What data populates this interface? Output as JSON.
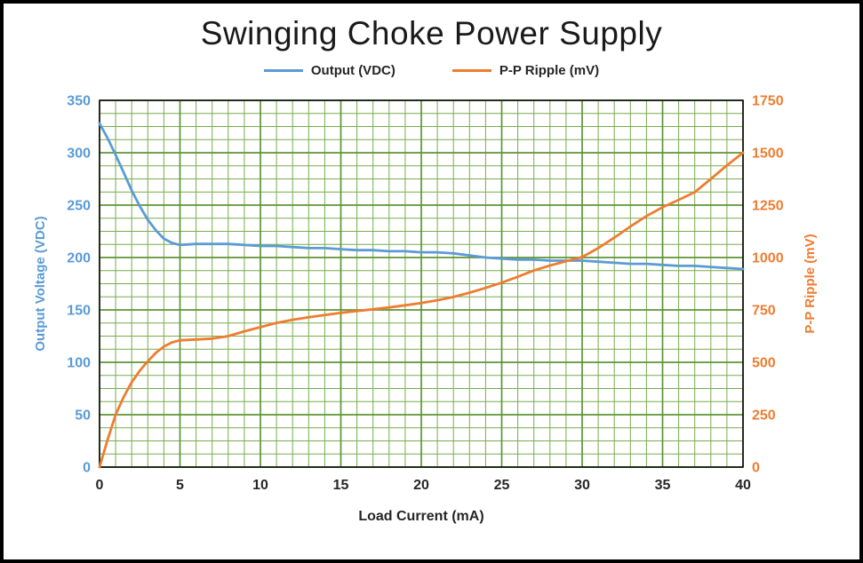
{
  "chart": {
    "colors": {
      "grid_minor": "#79ab4f",
      "grid_major": "#5e9434",
      "plot_border": "#000000",
      "text": "#262626",
      "frame_border": "#000000"
    }
  },
  "chart_data": {
    "type": "line",
    "title": "Swinging Choke Power Supply",
    "xlabel": "Load Current (mA)",
    "x_range": [
      0,
      40
    ],
    "x_major": 5,
    "x_minor": 1,
    "grid": true,
    "legend_position": "top",
    "left_axis": {
      "label": "Output Voltage (VDC)",
      "range": [
        0,
        350
      ],
      "major": 50,
      "minor": 12.5,
      "color": "#5B9BD5"
    },
    "right_axis": {
      "label": "P-P Ripple (mV)",
      "range": [
        0,
        1750
      ],
      "major": 250,
      "minor": 62.5,
      "color": "#ED7D31"
    },
    "series": [
      {
        "name": "Output (VDC)",
        "axis": "left",
        "color": "#5B9BD5",
        "points": [
          [
            0,
            328
          ],
          [
            0.5,
            314
          ],
          [
            1,
            298
          ],
          [
            1.5,
            281
          ],
          [
            2,
            264
          ],
          [
            2.5,
            249
          ],
          [
            3,
            236
          ],
          [
            3.5,
            226
          ],
          [
            4,
            218
          ],
          [
            4.5,
            214
          ],
          [
            5,
            212
          ],
          [
            6,
            213
          ],
          [
            7,
            213
          ],
          [
            8,
            213
          ],
          [
            9,
            212
          ],
          [
            10,
            211
          ],
          [
            11,
            211
          ],
          [
            12,
            210
          ],
          [
            13,
            209
          ],
          [
            14,
            209
          ],
          [
            15,
            208
          ],
          [
            16,
            207
          ],
          [
            17,
            207
          ],
          [
            18,
            206
          ],
          [
            19,
            206
          ],
          [
            20,
            205
          ],
          [
            21,
            205
          ],
          [
            22,
            204
          ],
          [
            23,
            202
          ],
          [
            24,
            200
          ],
          [
            25,
            199
          ],
          [
            26,
            198
          ],
          [
            27,
            198
          ],
          [
            28,
            197
          ],
          [
            29,
            197
          ],
          [
            30,
            197
          ],
          [
            31,
            196
          ],
          [
            32,
            195
          ],
          [
            33,
            194
          ],
          [
            34,
            194
          ],
          [
            35,
            193
          ],
          [
            36,
            192
          ],
          [
            37,
            192
          ],
          [
            38,
            191
          ],
          [
            39,
            190
          ],
          [
            40,
            189
          ]
        ]
      },
      {
        "name": "P-P Ripple (mV)",
        "axis": "right",
        "color": "#ED7D31",
        "points": [
          [
            0,
            0
          ],
          [
            0.5,
            130
          ],
          [
            1,
            250
          ],
          [
            1.5,
            335
          ],
          [
            2,
            405
          ],
          [
            2.5,
            460
          ],
          [
            3,
            505
          ],
          [
            3.5,
            545
          ],
          [
            4,
            575
          ],
          [
            4.5,
            595
          ],
          [
            5,
            605
          ],
          [
            6,
            609
          ],
          [
            7,
            613
          ],
          [
            8,
            625
          ],
          [
            9,
            648
          ],
          [
            10,
            668
          ],
          [
            11,
            688
          ],
          [
            12,
            703
          ],
          [
            13,
            715
          ],
          [
            14,
            726
          ],
          [
            15,
            736
          ],
          [
            16,
            745
          ],
          [
            17,
            753
          ],
          [
            18,
            762
          ],
          [
            19,
            772
          ],
          [
            20,
            783
          ],
          [
            21,
            796
          ],
          [
            22,
            812
          ],
          [
            23,
            832
          ],
          [
            24,
            855
          ],
          [
            25,
            880
          ],
          [
            26,
            908
          ],
          [
            27,
            938
          ],
          [
            28,
            962
          ],
          [
            29,
            982
          ],
          [
            30,
            1002
          ],
          [
            31,
            1045
          ],
          [
            32,
            1095
          ],
          [
            33,
            1148
          ],
          [
            34,
            1198
          ],
          [
            35,
            1240
          ],
          [
            36,
            1275
          ],
          [
            37,
            1312
          ],
          [
            38,
            1375
          ],
          [
            39,
            1440
          ],
          [
            40,
            1500
          ]
        ]
      }
    ]
  }
}
